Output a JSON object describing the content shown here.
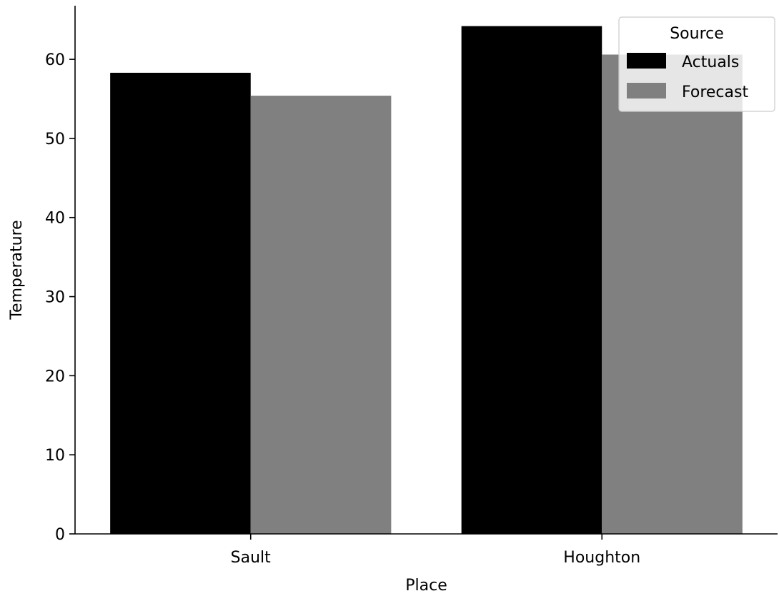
{
  "chart_data": {
    "type": "bar",
    "title": "",
    "xlabel": "Place",
    "ylabel": "Temperature",
    "categories": [
      "Sault",
      "Houghton"
    ],
    "series": [
      {
        "name": "Actuals",
        "values": [
          58.3,
          64.2
        ],
        "color": "#000000"
      },
      {
        "name": "Forecast",
        "values": [
          55.4,
          60.6
        ],
        "color": "#808080"
      }
    ],
    "ylim": [
      0,
      67.5
    ],
    "yticks": [
      0,
      10,
      20,
      30,
      40,
      50,
      60
    ],
    "ytick_labels": [
      "0",
      "10",
      "20",
      "30",
      "40",
      "50",
      "60"
    ],
    "grid": false,
    "legend": {
      "title": "Source",
      "placement": "top-right"
    }
  }
}
